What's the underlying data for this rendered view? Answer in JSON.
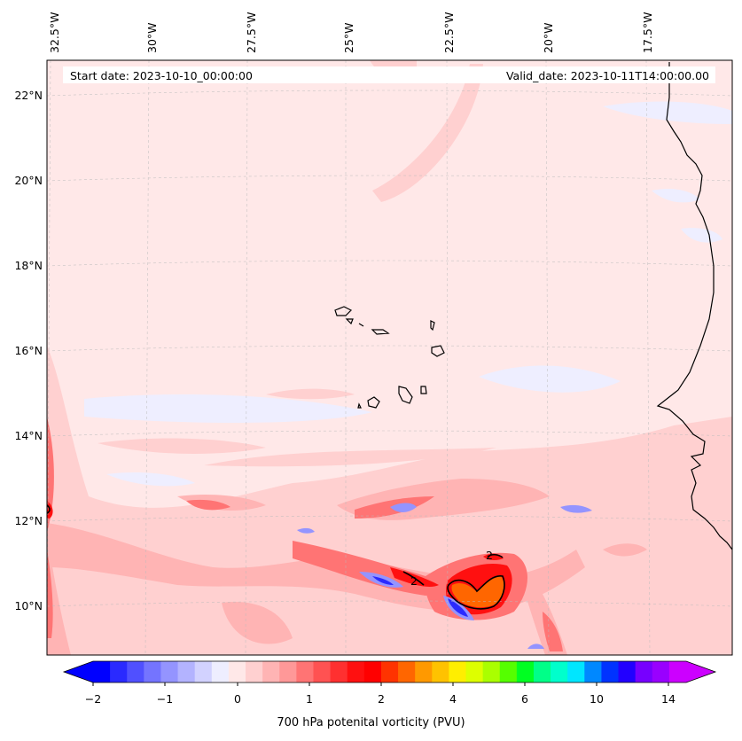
{
  "header": {
    "start_date": "Start date: 2023-10-10_00:00:00",
    "valid_date": "Valid_date: 2023-10-11T14:00:00.00"
  },
  "axes": {
    "lon_labels": [
      "32.5°W",
      "30°W",
      "27.5°W",
      "25°W",
      "22.5°W",
      "20°W",
      "17.5°W"
    ],
    "lat_labels": [
      "22°N",
      "20°N",
      "18°N",
      "16°N",
      "14°N",
      "12°N",
      "10°N"
    ]
  },
  "contours": {
    "label": "2"
  },
  "colorbar": {
    "title": "700 hPa potenital vorticity (PVU)",
    "tick_labels": [
      "−2",
      "−1",
      "0",
      "1",
      "2",
      "4",
      "6",
      "10",
      "14"
    ],
    "colors": [
      "#0000ff",
      "#2a2aff",
      "#5050ff",
      "#7474ff",
      "#9494ff",
      "#b3b3ff",
      "#d2d2ff",
      "#eeeeff",
      "#ffe8e8",
      "#ffd0d0",
      "#ffb4b4",
      "#ff9898",
      "#ff7474",
      "#ff5252",
      "#ff3030",
      "#ff1010",
      "#ff0000",
      "#ff3300",
      "#ff6600",
      "#ff9900",
      "#ffc200",
      "#ffee00",
      "#ddff00",
      "#aaff00",
      "#55ff00",
      "#00ff22",
      "#00ff88",
      "#00ffcc",
      "#00e6ff",
      "#0088ff",
      "#0033ff",
      "#2200ff",
      "#7700ff",
      "#9900ff",
      "#cc00ff"
    ],
    "under_color": "#0000ff",
    "over_color": "#cc00ff"
  },
  "colors": {
    "background": "#ffe8e8",
    "pink_light": "#ffd0d0",
    "pink_mid": "#ffb4b4",
    "red_mid": "#ff7474",
    "red": "#ff1010",
    "orange": "#ff6600",
    "blue_light": "#eeeeff",
    "blue_mid": "#9494ff",
    "blue": "#2a2aff",
    "coast": "#000000"
  }
}
